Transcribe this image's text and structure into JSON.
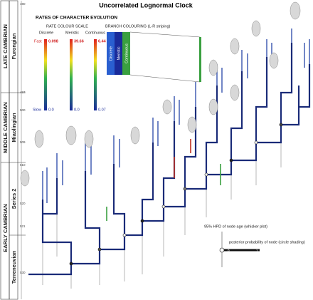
{
  "title": "Uncorrelated Lognormal Clock",
  "timescale": {
    "periods": [
      {
        "era": "LATE CAMBRIAN",
        "epoch": "Furongian"
      },
      {
        "era": "MIDDLE CAMBRIAN",
        "epoch": "Miaolingian"
      },
      {
        "era": "EARLY CAMBRIAN",
        "epochs": [
          "Series 2",
          "Terreneuvian"
        ]
      }
    ],
    "ages": [
      "480",
      "497",
      "500",
      "509",
      "510",
      "520",
      "521",
      "530"
    ]
  },
  "legend": {
    "title": "RATES OF CHARACTER EVOLUTION",
    "rate_scale": {
      "title": "RATE COLOUR SCALE",
      "fast": "Fast",
      "slow": "Slow",
      "columns": [
        {
          "name": "Discrete",
          "max": "0.098",
          "min": "0.0"
        },
        {
          "name": "Meristic",
          "max": "39.66",
          "min": "0.0"
        },
        {
          "name": "Continuous",
          "max": "6.44",
          "min": "0.07"
        }
      ]
    },
    "branch_colouring": {
      "title": "BRANCH COLOURING (L-R striping)",
      "stripes": [
        "Discrete",
        "Meristic",
        "Continuous"
      ]
    }
  },
  "node_key": {
    "hpd": "95% HPD of node age (whisker plot)",
    "posterior": "posterior probability of node (circle shading)",
    "min": "0",
    "max": "1"
  }
}
